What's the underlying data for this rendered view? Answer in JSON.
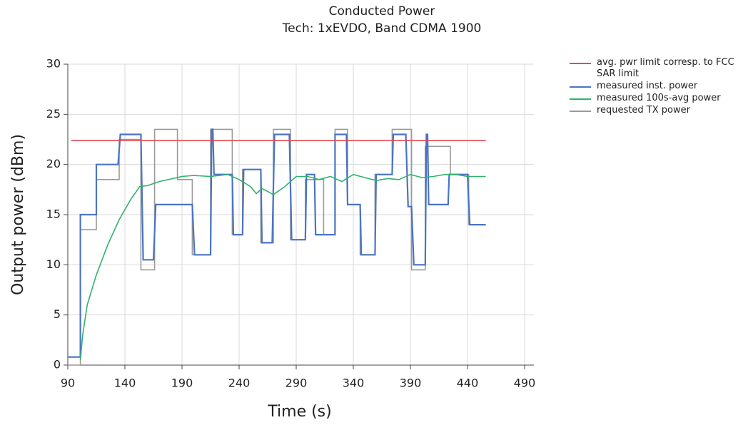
{
  "chart_data": {
    "type": "line",
    "title": "Conducted Power",
    "subtitle": "Tech: 1xEVDO, Band CDMA 1900",
    "x_label": "Time (s)",
    "y_label": "Output power (dBm)",
    "xlim": [
      90,
      490
    ],
    "xticks": [
      90,
      140,
      190,
      240,
      290,
      340,
      390,
      440,
      490
    ],
    "ylim": [
      0,
      30
    ],
    "yticks": [
      0,
      5,
      10,
      15,
      20,
      25,
      30
    ],
    "grid": true,
    "legend": "right",
    "series": [
      {
        "name": "avg. pwr limit corresp. to FCC SAR limit",
        "color": "#e8474c",
        "x": [
          93,
          456
        ],
        "values": [
          22.4,
          22.4
        ]
      },
      {
        "name": "measured inst. power",
        "color": "#4a74c4",
        "x": [
          90,
          101,
          101,
          115,
          115,
          134,
          136,
          154,
          156,
          165,
          167,
          199,
          201,
          215,
          216,
          217,
          218,
          234,
          235,
          243,
          244,
          259,
          260,
          269,
          271,
          284,
          286,
          298,
          299,
          306,
          307,
          324,
          324,
          334,
          335,
          346,
          347,
          359,
          360,
          374,
          375,
          386,
          388,
          391,
          393,
          403,
          404,
          405,
          406,
          423,
          424,
          440,
          442,
          456
        ],
        "values": [
          0.8,
          0.8,
          15,
          15,
          20,
          20,
          23,
          23,
          10.5,
          10.5,
          16,
          16,
          11,
          11,
          23.5,
          23.5,
          19,
          19,
          13,
          13,
          19.5,
          19.5,
          12.2,
          12.2,
          23,
          23,
          12.5,
          12.5,
          19,
          19,
          13,
          13,
          23,
          23,
          16,
          16,
          11,
          11,
          19,
          19,
          23,
          23,
          15.8,
          15.8,
          10,
          10,
          23,
          23,
          16,
          16,
          19,
          19,
          14,
          14
        ]
      },
      {
        "name": "measured 100s-avg power",
        "color": "#2fb36a",
        "x": [
          101,
          103,
          107,
          115,
          125,
          135,
          145,
          153,
          160,
          170,
          190,
          200,
          215,
          230,
          240,
          250,
          255,
          260,
          265,
          270,
          280,
          290,
          300,
          310,
          320,
          330,
          340,
          350,
          360,
          370,
          380,
          390,
          400,
          410,
          420,
          430,
          440,
          456
        ],
        "values": [
          0.5,
          3,
          6,
          9,
          12,
          14.5,
          16.5,
          17.8,
          17.9,
          18.3,
          18.8,
          18.9,
          18.8,
          19,
          18.5,
          17.8,
          17.1,
          17.6,
          17.3,
          17,
          17.8,
          18.8,
          18.8,
          18.5,
          18.8,
          18.3,
          19,
          18.7,
          18.4,
          18.6,
          18.5,
          19,
          18.7,
          18.8,
          19,
          19,
          18.8,
          18.8
        ]
      },
      {
        "name": "requested TX power",
        "color": "#9a9a9a",
        "x": [
          90,
          101,
          101,
          115,
          115,
          135,
          135,
          154,
          154,
          166,
          166,
          186,
          186,
          199,
          199,
          215,
          215,
          234,
          234,
          243,
          243,
          259,
          259,
          270,
          270,
          285,
          285,
          298,
          298,
          314,
          314,
          324,
          324,
          335,
          335,
          346,
          346,
          359,
          359,
          374,
          374,
          391,
          391,
          403,
          403,
          425,
          425,
          441,
          441,
          456
        ],
        "values": [
          0,
          0,
          13.5,
          13.5,
          18.5,
          18.5,
          22.5,
          22.5,
          9.5,
          9.5,
          23.5,
          23.5,
          18.5,
          18.5,
          11,
          11,
          23.5,
          23.5,
          13,
          13,
          19.5,
          19.5,
          12.2,
          12.2,
          23.5,
          23.5,
          12.5,
          12.5,
          18.5,
          18.5,
          13,
          13,
          23.5,
          23.5,
          16,
          16,
          11,
          11,
          19,
          19,
          23.5,
          23.5,
          9.5,
          9.5,
          21.8,
          21.8,
          19,
          19,
          14,
          14
        ]
      }
    ]
  }
}
